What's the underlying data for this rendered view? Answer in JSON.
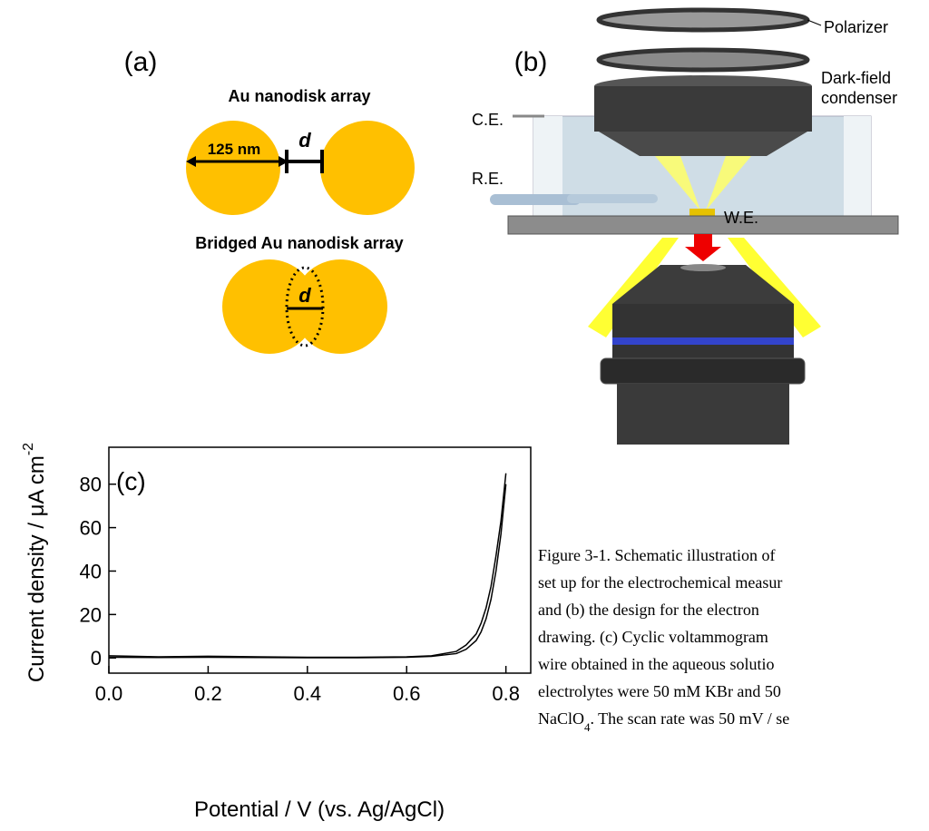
{
  "panel_a": {
    "label": "(a)",
    "array_title": "Au nanodisk array",
    "diameter": "125 nm",
    "gap": "d",
    "bridged_title": "Bridged Au nanodisk array",
    "bridged_gap": "d"
  },
  "panel_b": {
    "label": "(b)",
    "polarizer": "Polarizer",
    "condenser": [
      "Dark-field",
      "condenser"
    ],
    "counter_electrode": "C.E.",
    "reference_electrode": "R.E.",
    "working_electrode": "W.E."
  },
  "chart_data": {
    "type": "line",
    "panel_label": "(c)",
    "x_label": "Potential / V (vs. Ag/AgCl)",
    "y_label": {
      "text": "Current density / μA cm",
      "superscript": "-2"
    },
    "x": [
      0,
      0.1,
      0.2,
      0.3,
      0.4,
      0.5,
      0.6,
      0.65,
      0.7,
      0.72,
      0.74,
      0.75,
      0.76,
      0.77,
      0.78,
      0.79,
      0.8
    ],
    "series": [
      {
        "color": "#000000",
        "values": [
          1,
          0.5,
          0.8,
          0.5,
          0.3,
          0.3,
          0.5,
          1,
          3,
          6,
          11,
          16,
          23,
          33,
          47,
          63,
          85
        ]
      },
      {
        "color": "#000000",
        "values": [
          0.3,
          0.2,
          0.3,
          0.2,
          0.1,
          0.1,
          0.3,
          0.7,
          2,
          4,
          8,
          12,
          18,
          27,
          40,
          57,
          80
        ]
      }
    ],
    "xlim": [
      0,
      0.85
    ],
    "xticks": [
      {
        "value": 0,
        "label": "0.0"
      },
      0.2,
      0.4,
      0.6,
      0.8
    ],
    "ylim": [
      -7,
      97
    ],
    "yticks": [
      0,
      20,
      40,
      60,
      80
    ],
    "grid": false
  },
  "caption": {
    "lines": [
      "Figure 3-1. Schematic illustration of",
      "set up for the electrochemical measur",
      "and (b) the design for the electron",
      "drawing. (c) Cyclic voltammogram",
      "wire obtained in the aqueous solutio",
      "electrolytes were 50 mM KBr and 50"
    ],
    "last_line": {
      "text": "NaClO",
      "subscript": "4",
      "rest": ". The scan rate was 50 mV / se"
    }
  }
}
